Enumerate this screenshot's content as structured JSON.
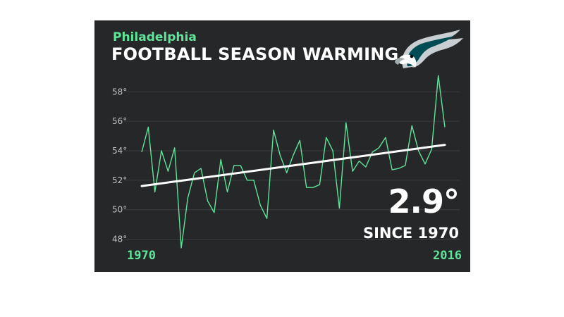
{
  "header": {
    "city": "Philadelphia",
    "title": "FOOTBALL SEASON WARMING"
  },
  "logo_icon": "eagle-head-icon",
  "colors": {
    "background": "#262729",
    "accent": "#5fe49a",
    "trend": "#ffffff",
    "grid": "#3b3d40"
  },
  "callout": {
    "change": "2.9°",
    "since_label": "SINCE 1970"
  },
  "x_axis": {
    "start_label": "1970",
    "end_label": "2016"
  },
  "chart_data": {
    "type": "line",
    "title": "FOOTBALL SEASON WARMING",
    "subtitle": "Philadelphia",
    "xlabel": "",
    "ylabel": "",
    "x": [
      1970,
      1971,
      1972,
      1973,
      1974,
      1975,
      1976,
      1977,
      1978,
      1979,
      1980,
      1981,
      1982,
      1983,
      1984,
      1985,
      1986,
      1987,
      1988,
      1989,
      1990,
      1991,
      1992,
      1993,
      1994,
      1995,
      1996,
      1997,
      1998,
      1999,
      2000,
      2001,
      2002,
      2003,
      2004,
      2005,
      2006,
      2007,
      2008,
      2009,
      2010,
      2011,
      2012,
      2013,
      2014,
      2015,
      2016
    ],
    "ylim": [
      47.4,
      59.4
    ],
    "yticks": [
      48,
      50,
      52,
      54,
      56,
      58
    ],
    "ytick_labels": [
      "48°",
      "50°",
      "52°",
      "54°",
      "56°",
      "58°"
    ],
    "grid": true,
    "series": [
      {
        "values": [
          53.9,
          55.6,
          51.2,
          54.0,
          52.6,
          54.2,
          47.4,
          50.8,
          52.5,
          52.8,
          50.6,
          49.8,
          53.4,
          51.2,
          53.0,
          53.0,
          52.0,
          52.0,
          50.3,
          49.4,
          55.4,
          53.7,
          52.5,
          53.7,
          54.7,
          51.5,
          51.5,
          51.7,
          54.9,
          54.0,
          50.1,
          55.9,
          52.6,
          53.3,
          52.9,
          53.9,
          54.2,
          54.9,
          52.7,
          52.8,
          53.0,
          55.7,
          54.0,
          53.1,
          54.1,
          59.1,
          55.6
        ]
      }
    ],
    "trend": {
      "start": 51.6,
      "end": 54.4
    }
  }
}
